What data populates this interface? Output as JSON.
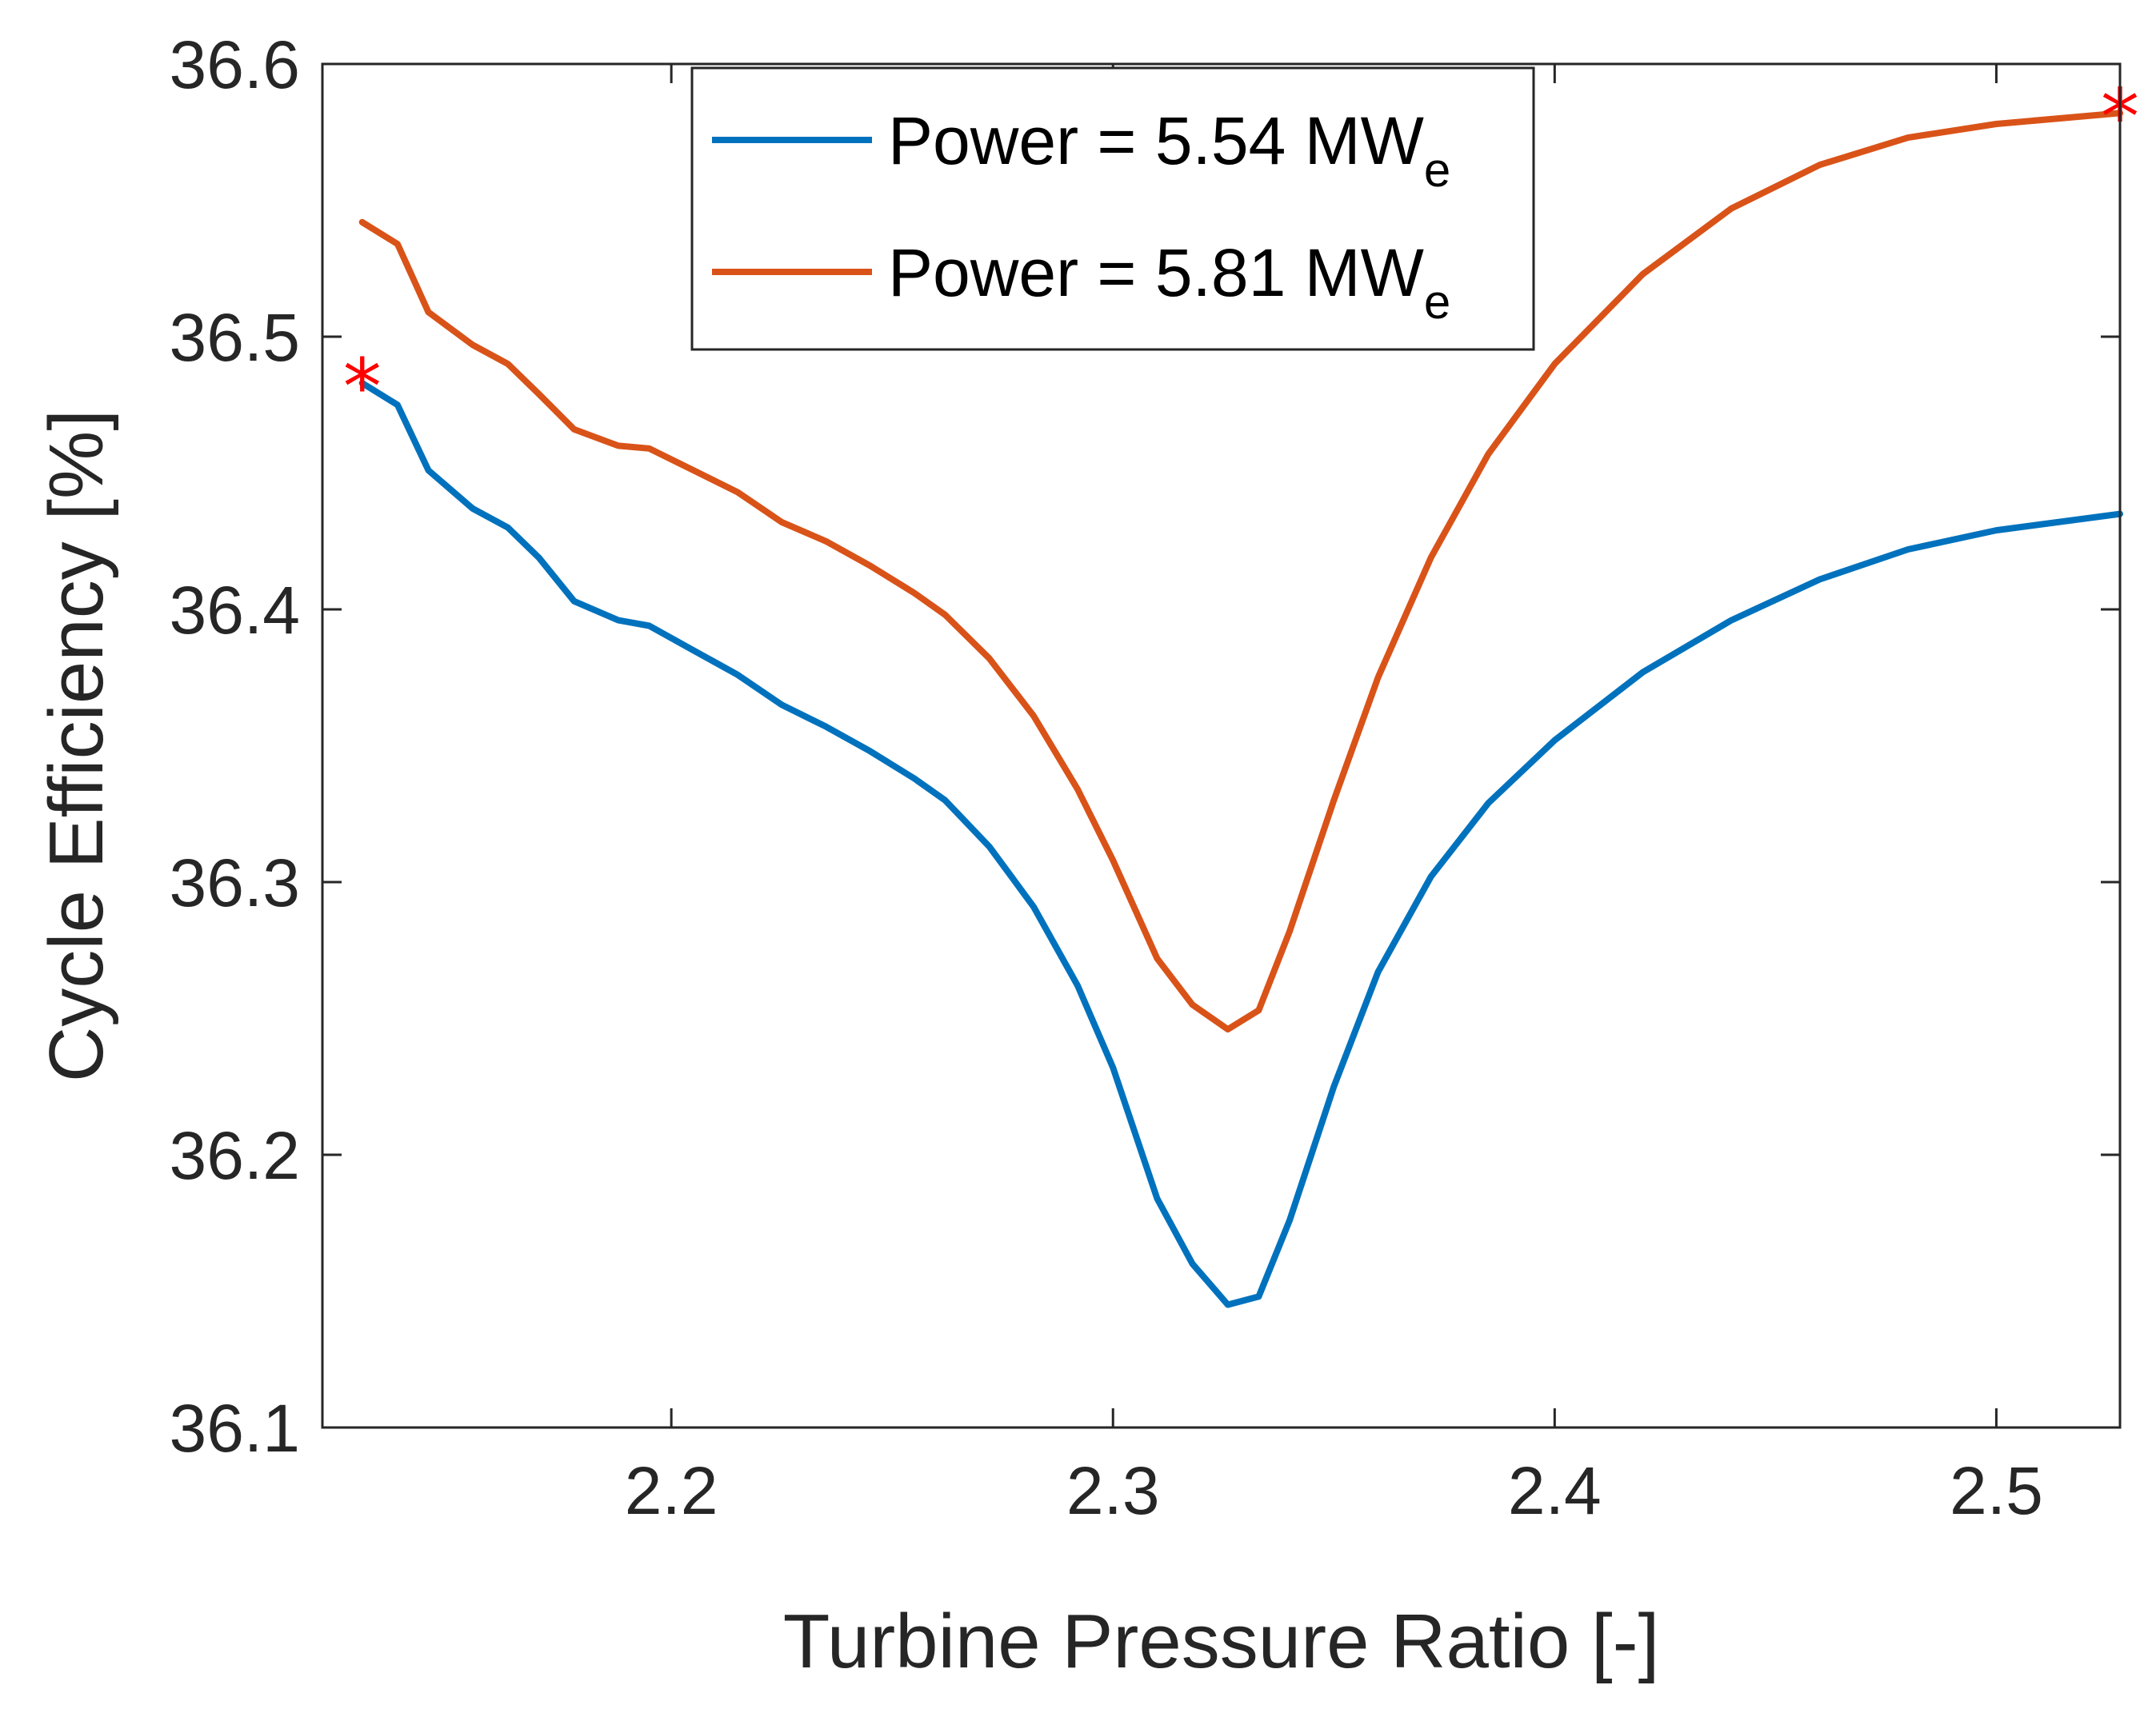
{
  "chart_data": {
    "type": "line",
    "title": "",
    "xlabel": "Turbine Pressure Ratio [-]",
    "ylabel": "Cycle Efficiency [%]",
    "xlim": [
      2.121,
      2.528
    ],
    "ylim": [
      36.1,
      36.6
    ],
    "xticks": [
      2.2,
      2.3,
      2.4,
      2.5
    ],
    "xtick_labels": [
      "2.2",
      "2.3",
      "2.4",
      "2.5"
    ],
    "yticks": [
      36.1,
      36.2,
      36.3,
      36.4,
      36.5,
      36.6
    ],
    "ytick_labels": [
      "36.1",
      "36.2",
      "36.3",
      "36.4",
      "36.5",
      "36.6"
    ],
    "grid": false,
    "legend_position": "top-center",
    "series": [
      {
        "name": "Power = 5.54 MW",
        "name_main": "Power = 5.54 MW",
        "name_sub": "e",
        "color": "#0072BD",
        "x": [
          2.13,
          2.138,
          2.145,
          2.155,
          2.163,
          2.17,
          2.178,
          2.188,
          2.195,
          2.205,
          2.215,
          2.225,
          2.235,
          2.245,
          2.255,
          2.262,
          2.272,
          2.282,
          2.292,
          2.3,
          2.31,
          2.318,
          2.326,
          2.333,
          2.34,
          2.35,
          2.36,
          2.372,
          2.385,
          2.4,
          2.42,
          2.44,
          2.46,
          2.48,
          2.5,
          2.528
        ],
        "y": [
          36.483,
          36.475,
          36.451,
          36.437,
          36.43,
          36.419,
          36.403,
          36.396,
          36.394,
          36.385,
          36.376,
          36.365,
          36.357,
          36.348,
          36.338,
          36.33,
          36.313,
          36.291,
          36.262,
          36.232,
          36.184,
          36.16,
          36.145,
          36.148,
          36.176,
          36.225,
          36.267,
          36.302,
          36.329,
          36.352,
          36.377,
          36.396,
          36.411,
          36.422,
          36.429,
          36.435
        ]
      },
      {
        "name": "Power = 5.81 MW",
        "name_main": "Power = 5.81 MW",
        "name_sub": "e",
        "color": "#D95319",
        "x": [
          2.13,
          2.138,
          2.145,
          2.155,
          2.163,
          2.17,
          2.178,
          2.188,
          2.195,
          2.205,
          2.215,
          2.225,
          2.235,
          2.245,
          2.255,
          2.262,
          2.272,
          2.282,
          2.292,
          2.3,
          2.31,
          2.318,
          2.326,
          2.333,
          2.34,
          2.35,
          2.36,
          2.372,
          2.385,
          2.4,
          2.42,
          2.44,
          2.46,
          2.48,
          2.5,
          2.528
        ],
        "y": [
          36.542,
          36.534,
          36.509,
          36.497,
          36.49,
          36.479,
          36.466,
          36.46,
          36.459,
          36.451,
          36.443,
          36.432,
          36.425,
          36.416,
          36.406,
          36.398,
          36.382,
          36.361,
          36.334,
          36.308,
          36.272,
          36.255,
          36.246,
          36.253,
          36.282,
          36.33,
          36.375,
          36.419,
          36.457,
          36.49,
          36.523,
          36.547,
          36.563,
          36.573,
          36.578,
          36.582
        ]
      }
    ],
    "markers": [
      {
        "label": "*",
        "color": "#FF0000",
        "x": 2.13,
        "y": 36.483
      },
      {
        "label": "*",
        "color": "#FF0000",
        "x": 2.528,
        "y": 36.582
      }
    ]
  }
}
